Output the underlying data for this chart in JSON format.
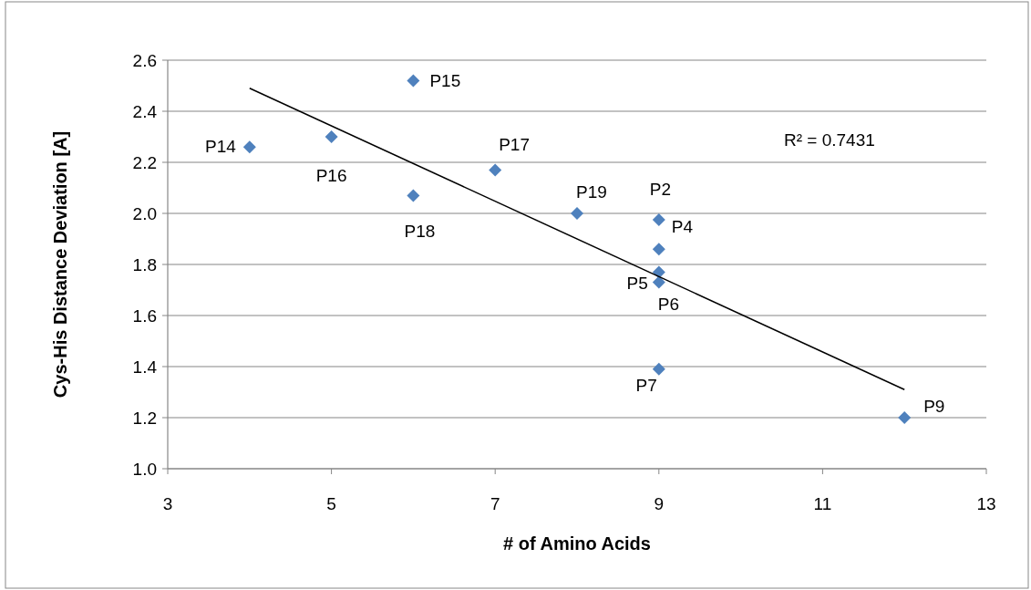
{
  "chart_data": {
    "type": "scatter",
    "xlabel": "# of Amino Acids",
    "ylabel": "Cys-His Distance Deviation [A]",
    "xlim": [
      3,
      13
    ],
    "xticks": [
      3,
      5,
      7,
      9,
      11,
      13
    ],
    "ylim": [
      1.0,
      2.6
    ],
    "yticks": [
      {
        "value": 1.0,
        "label": "1.0"
      },
      {
        "value": 1.2,
        "label": "1.2"
      },
      {
        "value": 1.4,
        "label": "1.4"
      },
      {
        "value": 1.6,
        "label": "1.6"
      },
      {
        "value": 1.8,
        "label": "1.8"
      },
      {
        "value": 2.0,
        "label": "2.0"
      },
      {
        "value": 2.2,
        "label": "2.2"
      },
      {
        "value": 2.4,
        "label": "2.4"
      },
      {
        "value": 2.6,
        "label": "2.6"
      }
    ],
    "grid": "y",
    "series": [
      {
        "color": "#4f81bd",
        "marker": "diamond",
        "x": [
          4,
          5,
          6,
          6,
          7,
          8,
          9,
          9,
          9,
          9,
          9,
          12
        ],
        "values": [
          2.26,
          2.3,
          2.52,
          2.07,
          2.17,
          2.0,
          1.975,
          1.86,
          1.77,
          1.73,
          1.39,
          1.2
        ]
      },
      {
        "type": "line",
        "color": "#000000",
        "marker": "none",
        "x": [
          4,
          12
        ],
        "values": [
          2.49,
          1.31
        ]
      }
    ],
    "annotations": [
      {
        "text": "P14",
        "x": 4,
        "y": 2.26
      },
      {
        "text": "P16",
        "x": 5,
        "y": 2.3
      },
      {
        "text": "P15",
        "x": 6,
        "y": 2.52
      },
      {
        "text": "P18",
        "x": 6,
        "y": 2.07
      },
      {
        "text": "P17",
        "x": 7,
        "y": 2.17
      },
      {
        "text": "P19",
        "x": 8,
        "y": 2.0
      },
      {
        "text": "P2",
        "x": 9,
        "y": 1.975
      },
      {
        "text": "P4",
        "x": 9,
        "y": 1.86
      },
      {
        "text": "P5",
        "x": 9,
        "y": 1.77
      },
      {
        "text": "P6",
        "x": 9,
        "y": 1.73
      },
      {
        "text": "P7",
        "x": 9,
        "y": 1.39
      },
      {
        "text": "P9",
        "x": 12,
        "y": 1.2
      },
      "R² = 0.7431"
    ]
  }
}
